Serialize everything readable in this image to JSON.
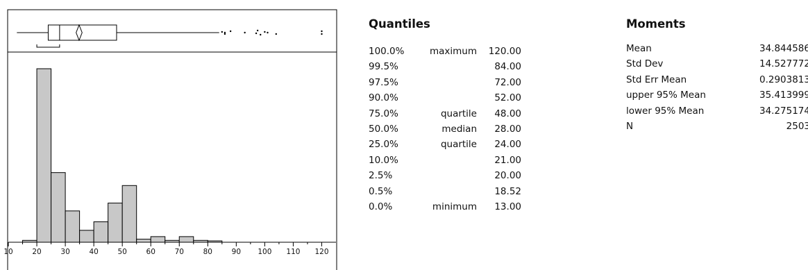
{
  "chart_data": {
    "type": "bar",
    "subtype": "histogram-with-outlier-boxplot",
    "title": "",
    "xlabel": "",
    "ylabel": "",
    "xlim": [
      10,
      125
    ],
    "ticks": [
      10,
      20,
      30,
      40,
      50,
      60,
      70,
      80,
      90,
      100,
      110,
      120
    ],
    "bin_width": 5,
    "bins": [
      {
        "start": 15,
        "end": 20,
        "count": 11
      },
      {
        "start": 20,
        "end": 25,
        "count": 1019
      },
      {
        "start": 25,
        "end": 30,
        "count": 409
      },
      {
        "start": 30,
        "end": 35,
        "count": 184
      },
      {
        "start": 35,
        "end": 40,
        "count": 70
      },
      {
        "start": 40,
        "end": 45,
        "count": 120
      },
      {
        "start": 45,
        "end": 50,
        "count": 230
      },
      {
        "start": 50,
        "end": 55,
        "count": 333
      },
      {
        "start": 55,
        "end": 60,
        "count": 18
      },
      {
        "start": 60,
        "end": 65,
        "count": 33
      },
      {
        "start": 65,
        "end": 70,
        "count": 11
      },
      {
        "start": 70,
        "end": 75,
        "count": 33
      },
      {
        "start": 75,
        "end": 80,
        "count": 11
      },
      {
        "start": 80,
        "end": 85,
        "count": 8
      }
    ],
    "boxplot": {
      "whisker_low": 13,
      "q1": 24,
      "median": 28,
      "q3": 48,
      "whisker_high": 84,
      "mean": 34.84,
      "mean_ci": [
        34.28,
        35.41
      ],
      "shortest_half": [
        20,
        28
      ],
      "outliers": [
        85,
        86,
        86,
        88,
        93,
        97,
        97.5,
        98.5,
        100,
        101,
        104,
        120,
        120
      ]
    }
  },
  "quantiles": {
    "title": "Quantiles",
    "rows": [
      {
        "pct": "100.0%",
        "label": "maximum",
        "value": "120.00"
      },
      {
        "pct": "99.5%",
        "label": "",
        "value": "84.00"
      },
      {
        "pct": "97.5%",
        "label": "",
        "value": "72.00"
      },
      {
        "pct": "90.0%",
        "label": "",
        "value": "52.00"
      },
      {
        "pct": "75.0%",
        "label": "quartile",
        "value": "48.00"
      },
      {
        "pct": "50.0%",
        "label": "median",
        "value": "28.00"
      },
      {
        "pct": "25.0%",
        "label": "quartile",
        "value": "24.00"
      },
      {
        "pct": "10.0%",
        "label": "",
        "value": "21.00"
      },
      {
        "pct": "2.5%",
        "label": "",
        "value": "20.00"
      },
      {
        "pct": "0.5%",
        "label": "",
        "value": "18.52"
      },
      {
        "pct": "0.0%",
        "label": "minimum",
        "value": "13.00"
      }
    ]
  },
  "moments": {
    "title": "Moments",
    "rows": [
      {
        "label": "Mean",
        "value": "34.844586"
      },
      {
        "label": "Std Dev",
        "value": "14.527772"
      },
      {
        "label": "Std Err Mean",
        "value": "0.2903813"
      },
      {
        "label": "upper 95% Mean",
        "value": "35.413999"
      },
      {
        "label": "lower 95% Mean",
        "value": "34.275174"
      },
      {
        "label": "N",
        "value": "2503"
      }
    ]
  }
}
